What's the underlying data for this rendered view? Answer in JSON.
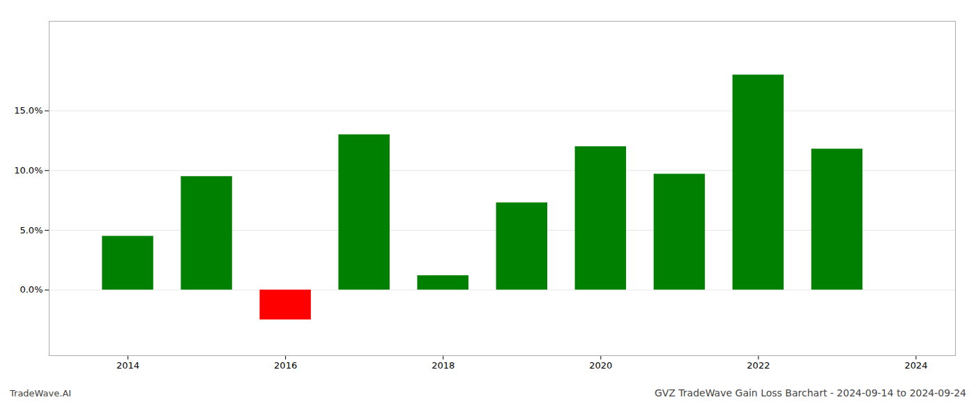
{
  "chart_data": {
    "type": "bar",
    "title": "GVZ TradeWave Gain Loss Barchart - 2024-09-14 to 2024-09-24",
    "annotations": [
      "TradeWave.AI"
    ],
    "x": [
      2014,
      2015,
      2016,
      2017,
      2018,
      2019,
      2020,
      2021,
      2022,
      2023
    ],
    "values": [
      0.045,
      0.095,
      -0.025,
      0.13,
      0.012,
      0.073,
      0.12,
      0.097,
      0.18,
      0.118
    ],
    "colors": [
      "#008000",
      "#008000",
      "#ff0000",
      "#008000",
      "#008000",
      "#008000",
      "#008000",
      "#008000",
      "#008000",
      "#008000"
    ],
    "xlim": [
      2013.0,
      2024.5
    ],
    "xticks": [
      2014,
      2016,
      2018,
      2020,
      2022,
      2024
    ],
    "ylim": [
      -0.055,
      0.225
    ],
    "yticks": [
      {
        "value": 0.0,
        "label": "0.0%"
      },
      {
        "value": 0.05,
        "label": "5.0%"
      },
      {
        "value": 0.1,
        "label": "10.0%"
      },
      {
        "value": 0.15,
        "label": "15.0%"
      }
    ],
    "grid": true
  }
}
